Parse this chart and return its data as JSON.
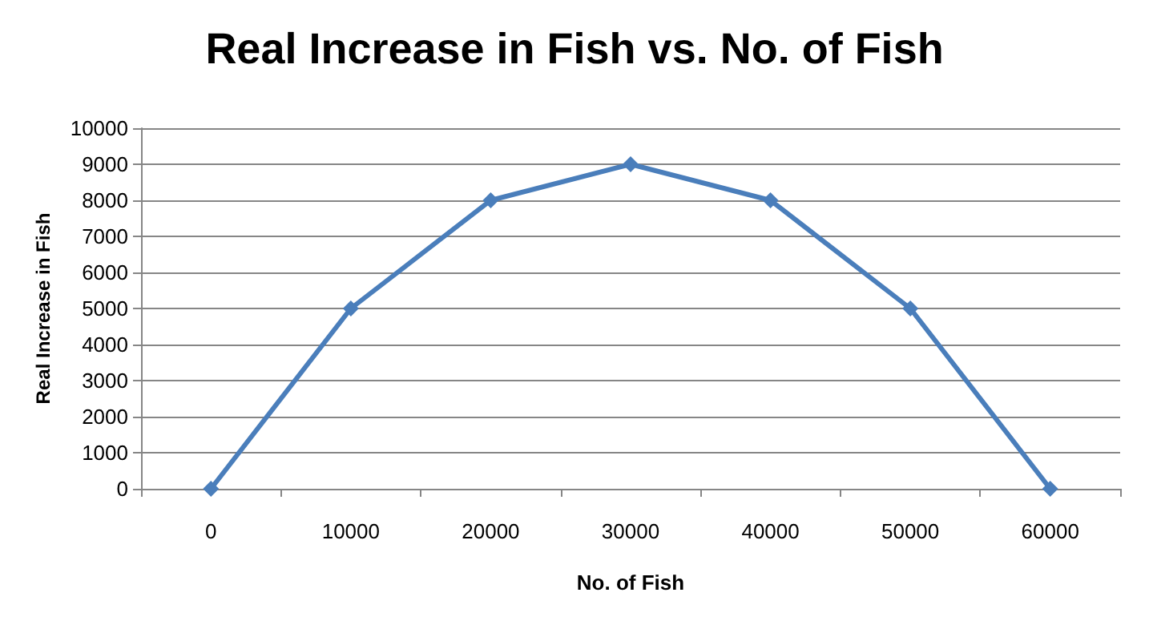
{
  "chart_data": {
    "type": "line",
    "title": "Real Increase in Fish vs. No. of Fish",
    "xlabel": "No. of Fish",
    "ylabel": "Real Increase in Fish",
    "categories": [
      "0",
      "10000",
      "20000",
      "30000",
      "40000",
      "50000",
      "60000"
    ],
    "series": [
      {
        "color": "#4a7ebb",
        "values": [
          0,
          5000,
          8000,
          9000,
          8000,
          5000,
          0
        ]
      }
    ],
    "ylim": [
      0,
      10000
    ],
    "yticks": [
      0,
      1000,
      2000,
      3000,
      4000,
      5000,
      6000,
      7000,
      8000,
      9000,
      10000
    ],
    "grid": "y",
    "marker": "diamond",
    "line_style": "solid"
  }
}
